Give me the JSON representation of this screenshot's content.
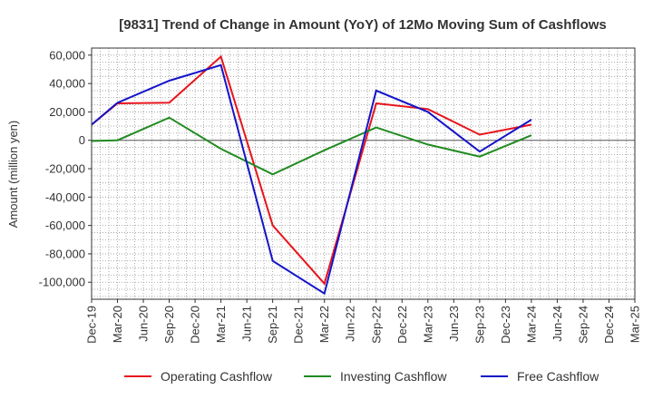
{
  "chart_data": {
    "type": "line",
    "title": "[9831]  Trend of Change in Amount (YoY) of 12Mo Moving Sum of Cashflows",
    "xlabel": "",
    "ylabel": "Amount (million yen)",
    "ylim": [
      -112000,
      65000
    ],
    "yticks": [
      60000,
      40000,
      20000,
      0,
      -20000,
      -40000,
      -60000,
      -80000,
      -100000
    ],
    "ytick_labels": [
      "60,000",
      "40,000",
      "20,000",
      "0",
      "-20,000",
      "-40,000",
      "-60,000",
      "-80,000",
      "-100,000"
    ],
    "categories": [
      "Dec-19",
      "Mar-20",
      "Jun-20",
      "Sep-20",
      "Dec-20",
      "Mar-21",
      "Jun-21",
      "Sep-21",
      "Dec-21",
      "Mar-22",
      "Jun-22",
      "Sep-22",
      "Dec-22",
      "Mar-23",
      "Jun-23",
      "Sep-23",
      "Dec-23",
      "Mar-24",
      "Jun-24",
      "Sep-24",
      "Dec-24",
      "Mar-25"
    ],
    "series": [
      {
        "name": "Operating Cashflow",
        "color": "#e8141c",
        "values": [
          11000,
          26000,
          null,
          26500,
          null,
          59000,
          null,
          -60000,
          null,
          -101000,
          null,
          26000,
          null,
          22000,
          null,
          4000,
          null,
          11000,
          null,
          null,
          null,
          null
        ]
      },
      {
        "name": "Investing Cashflow",
        "color": "#228b22",
        "values": [
          -500,
          0,
          null,
          16000,
          null,
          -6000,
          null,
          -24000,
          null,
          -7000,
          null,
          9000,
          null,
          -3000,
          null,
          -11500,
          null,
          3500,
          null,
          null,
          null,
          null
        ]
      },
      {
        "name": "Free Cashflow",
        "color": "#1414c8",
        "values": [
          11000,
          26500,
          null,
          42000,
          null,
          53000,
          null,
          -85000,
          null,
          -108000,
          null,
          35000,
          null,
          20000,
          null,
          -8000,
          null,
          14500,
          null,
          null,
          null,
          null
        ]
      }
    ],
    "legend_position": "bottom",
    "grid": true
  }
}
